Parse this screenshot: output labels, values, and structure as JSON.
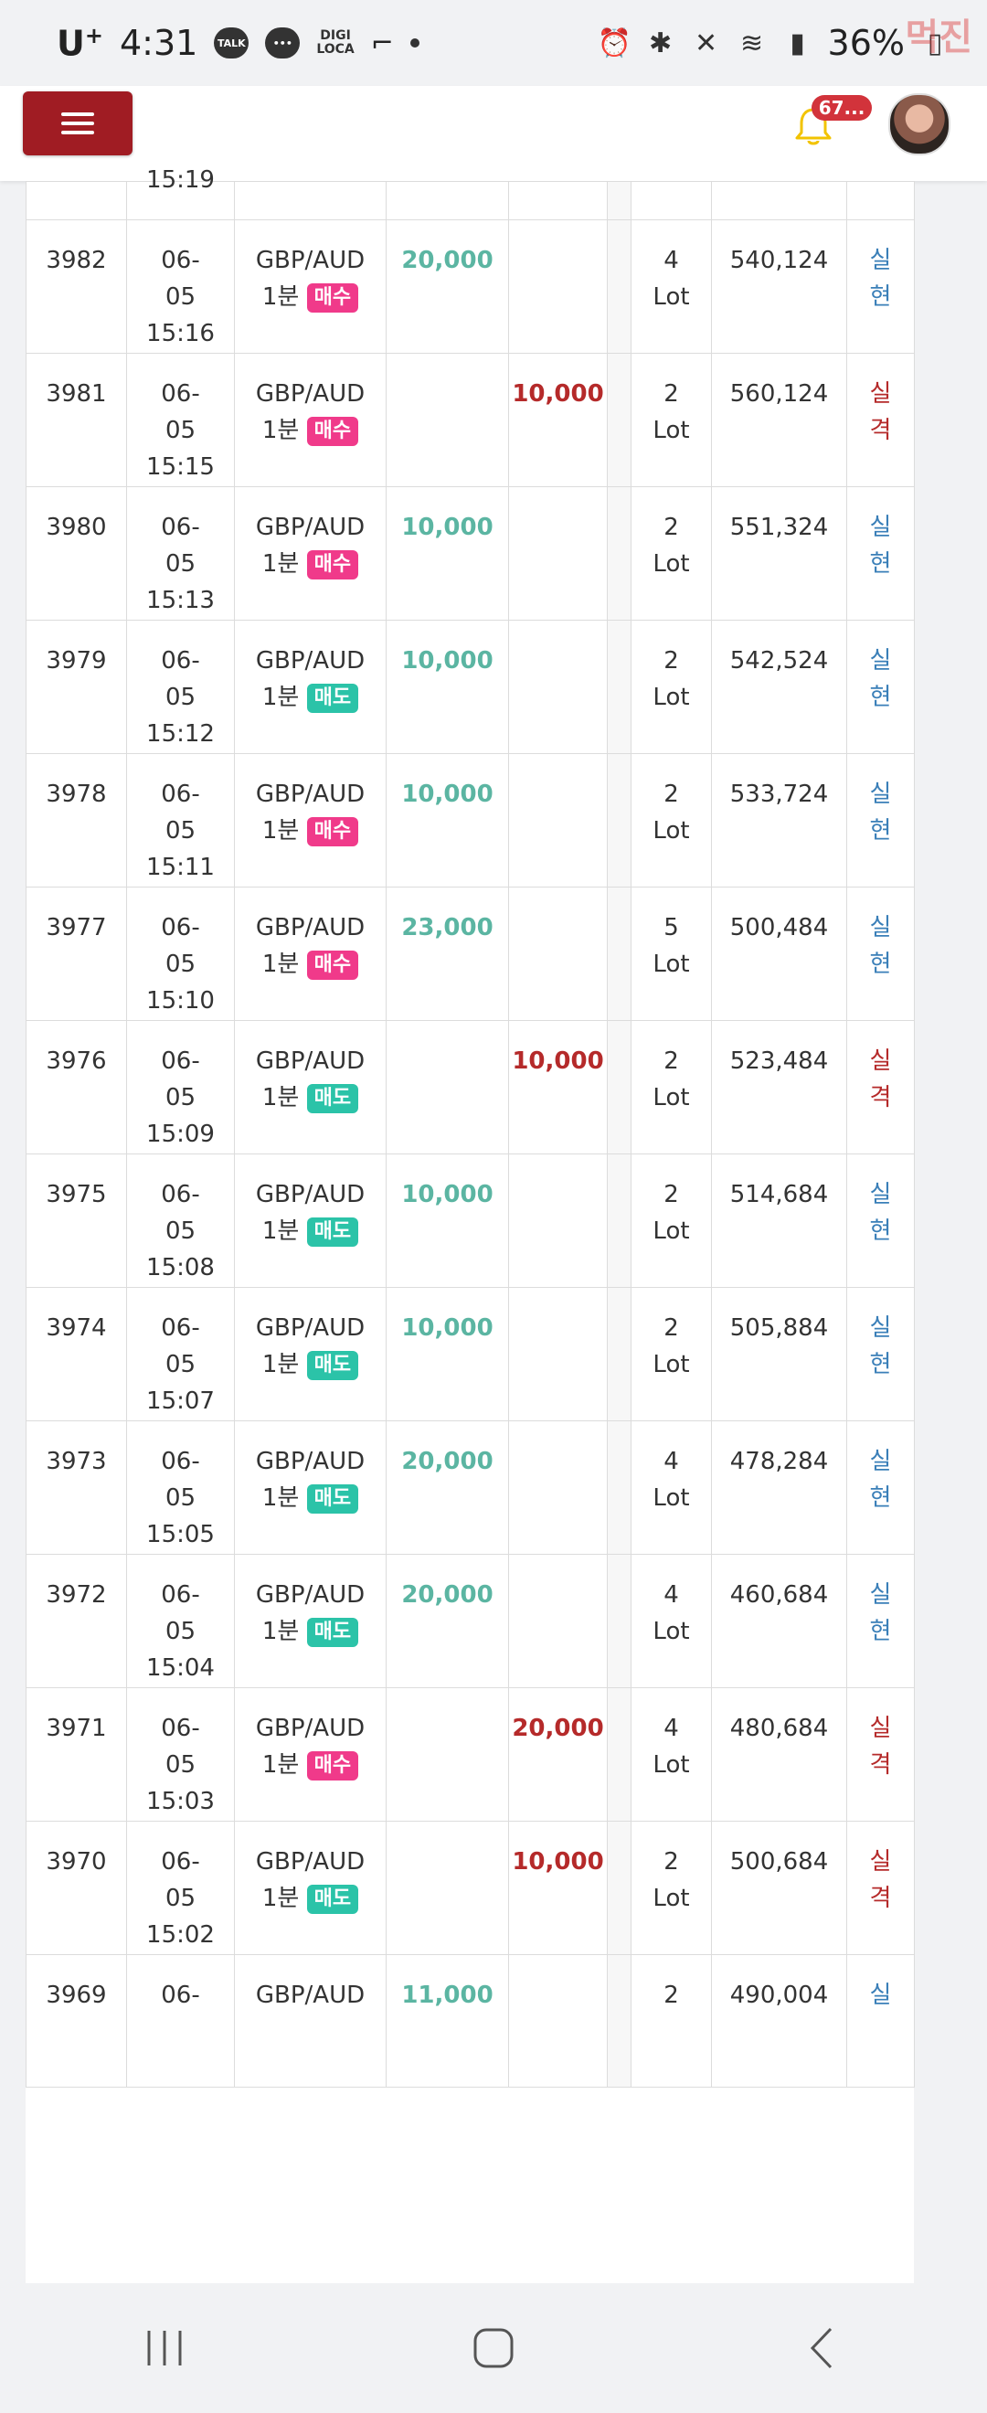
{
  "status_bar": {
    "carrier": "U",
    "carrier_sup": "+",
    "time": "4:31",
    "talk_label": "TALK",
    "digi_line1": "DIGI",
    "digi_line2": "LOCA",
    "battery": "36%",
    "watermark": "먹진"
  },
  "header": {
    "notification_count": "67..."
  },
  "trades": [
    {
      "id": "3982",
      "date": "06-",
      "date2": "05",
      "time": "15:16",
      "pair": "GBP/AUD",
      "interval": "1분",
      "side": "매수",
      "side_type": "buy",
      "win": "20,000",
      "lose": "",
      "lot_n": "4",
      "lot_unit": "Lot",
      "balance": "540,124",
      "res1": "실",
      "res2": "현",
      "res_type": "win"
    },
    {
      "id": "3981",
      "date": "06-",
      "date2": "05",
      "time": "15:15",
      "pair": "GBP/AUD",
      "interval": "1분",
      "side": "매수",
      "side_type": "buy",
      "win": "",
      "lose": "10,000",
      "lot_n": "2",
      "lot_unit": "Lot",
      "balance": "560,124",
      "res1": "실",
      "res2": "격",
      "res_type": "lose"
    },
    {
      "id": "3980",
      "date": "06-",
      "date2": "05",
      "time": "15:13",
      "pair": "GBP/AUD",
      "interval": "1분",
      "side": "매수",
      "side_type": "buy",
      "win": "10,000",
      "lose": "",
      "lot_n": "2",
      "lot_unit": "Lot",
      "balance": "551,324",
      "res1": "실",
      "res2": "현",
      "res_type": "win"
    },
    {
      "id": "3979",
      "date": "06-",
      "date2": "05",
      "time": "15:12",
      "pair": "GBP/AUD",
      "interval": "1분",
      "side": "매도",
      "side_type": "sell",
      "win": "10,000",
      "lose": "",
      "lot_n": "2",
      "lot_unit": "Lot",
      "balance": "542,524",
      "res1": "실",
      "res2": "현",
      "res_type": "win"
    },
    {
      "id": "3978",
      "date": "06-",
      "date2": "05",
      "time": "15:11",
      "pair": "GBP/AUD",
      "interval": "1분",
      "side": "매수",
      "side_type": "buy",
      "win": "10,000",
      "lose": "",
      "lot_n": "2",
      "lot_unit": "Lot",
      "balance": "533,724",
      "res1": "실",
      "res2": "현",
      "res_type": "win"
    },
    {
      "id": "3977",
      "date": "06-",
      "date2": "05",
      "time": "15:10",
      "pair": "GBP/AUD",
      "interval": "1분",
      "side": "매수",
      "side_type": "buy",
      "win": "23,000",
      "lose": "",
      "lot_n": "5",
      "lot_unit": "Lot",
      "balance": "500,484",
      "res1": "실",
      "res2": "현",
      "res_type": "win"
    },
    {
      "id": "3976",
      "date": "06-",
      "date2": "05",
      "time": "15:09",
      "pair": "GBP/AUD",
      "interval": "1분",
      "side": "매도",
      "side_type": "sell",
      "win": "",
      "lose": "10,000",
      "lot_n": "2",
      "lot_unit": "Lot",
      "balance": "523,484",
      "res1": "실",
      "res2": "격",
      "res_type": "lose"
    },
    {
      "id": "3975",
      "date": "06-",
      "date2": "05",
      "time": "15:08",
      "pair": "GBP/AUD",
      "interval": "1분",
      "side": "매도",
      "side_type": "sell",
      "win": "10,000",
      "lose": "",
      "lot_n": "2",
      "lot_unit": "Lot",
      "balance": "514,684",
      "res1": "실",
      "res2": "현",
      "res_type": "win"
    },
    {
      "id": "3974",
      "date": "06-",
      "date2": "05",
      "time": "15:07",
      "pair": "GBP/AUD",
      "interval": "1분",
      "side": "매도",
      "side_type": "sell",
      "win": "10,000",
      "lose": "",
      "lot_n": "2",
      "lot_unit": "Lot",
      "balance": "505,884",
      "res1": "실",
      "res2": "현",
      "res_type": "win"
    },
    {
      "id": "3973",
      "date": "06-",
      "date2": "05",
      "time": "15:05",
      "pair": "GBP/AUD",
      "interval": "1분",
      "side": "매도",
      "side_type": "sell",
      "win": "20,000",
      "lose": "",
      "lot_n": "4",
      "lot_unit": "Lot",
      "balance": "478,284",
      "res1": "실",
      "res2": "현",
      "res_type": "win"
    },
    {
      "id": "3972",
      "date": "06-",
      "date2": "05",
      "time": "15:04",
      "pair": "GBP/AUD",
      "interval": "1분",
      "side": "매도",
      "side_type": "sell",
      "win": "20,000",
      "lose": "",
      "lot_n": "4",
      "lot_unit": "Lot",
      "balance": "460,684",
      "res1": "실",
      "res2": "현",
      "res_type": "win"
    },
    {
      "id": "3971",
      "date": "06-",
      "date2": "05",
      "time": "15:03",
      "pair": "GBP/AUD",
      "interval": "1분",
      "side": "매수",
      "side_type": "buy",
      "win": "",
      "lose": "20,000",
      "lot_n": "4",
      "lot_unit": "Lot",
      "balance": "480,684",
      "res1": "실",
      "res2": "격",
      "res_type": "lose"
    },
    {
      "id": "3970",
      "date": "06-",
      "date2": "05",
      "time": "15:02",
      "pair": "GBP/AUD",
      "interval": "1분",
      "side": "매도",
      "side_type": "sell",
      "win": "",
      "lose": "10,000",
      "lot_n": "2",
      "lot_unit": "Lot",
      "balance": "500,684",
      "res1": "실",
      "res2": "격",
      "res_type": "lose"
    },
    {
      "id": "3969",
      "date": "06-",
      "date2": "",
      "time": "",
      "pair": "GBP/AUD",
      "interval": "",
      "side": "",
      "side_type": "",
      "win": "11,000",
      "lose": "",
      "lot_n": "2",
      "lot_unit": "",
      "balance": "490,004",
      "res1": "실",
      "res2": "",
      "res_type": "win"
    }
  ],
  "partial_top_time": "15:19"
}
